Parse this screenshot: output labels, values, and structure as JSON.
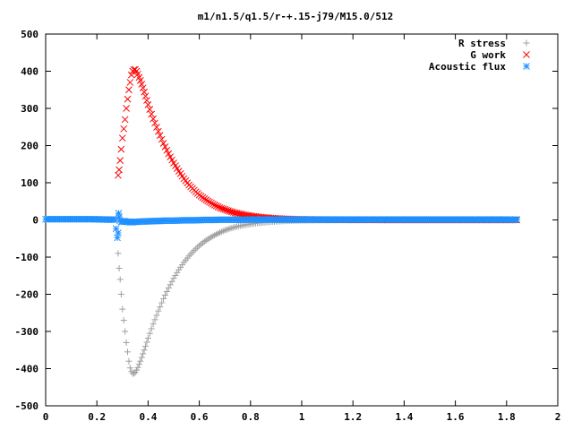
{
  "chart_data": {
    "type": "scatter",
    "title": "m1/n1.5/q1.5/r-+.15-j79/M15.0/512",
    "xlabel": "",
    "ylabel": "",
    "xlim": [
      0,
      2
    ],
    "ylim": [
      -500,
      500
    ],
    "x_ticks": [
      "0",
      "0.2",
      "0.4",
      "0.6",
      "0.8",
      "1",
      "1.2",
      "1.4",
      "1.6",
      "1.8",
      "2"
    ],
    "y_ticks": [
      "500",
      "400",
      "300",
      "200",
      "100",
      "0",
      "-100",
      "-200",
      "-300",
      "-400",
      "-500"
    ],
    "grid": false,
    "legend_position": "top-right",
    "series": [
      {
        "name": "R stress",
        "marker": "plus",
        "color": "#a0a0a0",
        "x": [
          0.283,
          0.287,
          0.291,
          0.295,
          0.3,
          0.305,
          0.31,
          0.315,
          0.32,
          0.325,
          0.33,
          0.335,
          0.34,
          0.345,
          0.35,
          0.355,
          0.36,
          0.37,
          0.38,
          0.39,
          0.4,
          0.42,
          0.44,
          0.46,
          0.48,
          0.5,
          0.52,
          0.54,
          0.56,
          0.58,
          0.6,
          0.62,
          0.64,
          0.66,
          0.68,
          0.7,
          0.72,
          0.74,
          0.76,
          0.78,
          0.8,
          0.82,
          0.84,
          0.86,
          0.88,
          0.9,
          0.92,
          0.94,
          0.96,
          0.98,
          1.0,
          1.05,
          1.1,
          1.15,
          1.2,
          1.25,
          1.3,
          1.4,
          1.5,
          1.6,
          1.7,
          1.8,
          1.84
        ],
        "y": [
          -90,
          -130,
          -160,
          -200,
          -240,
          -270,
          -300,
          -330,
          -355,
          -380,
          -398,
          -408,
          -413,
          -413,
          -410,
          -404,
          -397,
          -380,
          -360,
          -340,
          -318,
          -280,
          -245,
          -212,
          -183,
          -157,
          -134,
          -114,
          -97,
          -82,
          -69,
          -58,
          -49,
          -41,
          -34,
          -28,
          -23,
          -19,
          -16,
          -13,
          -11,
          -9,
          -7.5,
          -6,
          -5,
          -4,
          -3.3,
          -2.7,
          -2.2,
          -1.8,
          -1.5,
          -1,
          -0.7,
          -0.5,
          -0.3,
          -0.2,
          -0.1,
          0,
          0,
          0,
          0,
          0,
          0
        ]
      },
      {
        "name": "G work",
        "marker": "cross",
        "color": "#ff0000",
        "x": [
          0.283,
          0.287,
          0.291,
          0.295,
          0.3,
          0.305,
          0.31,
          0.315,
          0.32,
          0.325,
          0.33,
          0.335,
          0.34,
          0.345,
          0.35,
          0.355,
          0.36,
          0.37,
          0.38,
          0.39,
          0.4,
          0.42,
          0.44,
          0.46,
          0.48,
          0.5,
          0.52,
          0.54,
          0.56,
          0.58,
          0.6,
          0.62,
          0.64,
          0.66,
          0.68,
          0.7,
          0.72,
          0.74,
          0.76,
          0.78,
          0.8,
          0.82,
          0.84,
          0.86,
          0.88,
          0.9,
          0.92,
          0.94,
          0.96,
          0.98,
          1.0,
          1.05,
          1.1,
          1.15,
          1.2,
          1.25,
          1.3,
          1.4,
          1.5,
          1.6,
          1.7,
          1.8,
          1.84
        ],
        "y": [
          120,
          135,
          160,
          190,
          220,
          245,
          270,
          300,
          325,
          350,
          370,
          390,
          400,
          404,
          405,
          400,
          392,
          375,
          355,
          333,
          310,
          272,
          238,
          206,
          178,
          153,
          131,
          111,
          94,
          80,
          67,
          57,
          48,
          40,
          33,
          28,
          23,
          19,
          16,
          13,
          11,
          9,
          7.5,
          6,
          5,
          4,
          3.3,
          2.7,
          2.2,
          1.8,
          1.5,
          1,
          0.7,
          0.5,
          0.3,
          0.2,
          0.1,
          0,
          0,
          0,
          0,
          0,
          0
        ]
      },
      {
        "name": "Acoustic flux",
        "marker": "star",
        "color": "#1e90ff",
        "x": [
          0.0,
          0.03,
          0.06,
          0.09,
          0.12,
          0.15,
          0.18,
          0.21,
          0.24,
          0.27,
          0.28,
          0.283,
          0.285,
          0.287,
          0.29,
          0.295,
          0.3,
          0.305,
          0.31,
          0.32,
          0.33,
          0.34,
          0.35,
          0.36,
          0.38,
          0.4,
          0.42,
          0.44,
          0.46,
          0.48,
          0.5,
          0.52,
          0.54,
          0.56,
          0.58,
          0.6,
          0.62,
          0.64,
          0.66,
          0.68,
          0.7,
          0.72,
          0.74,
          0.76,
          0.78,
          0.8,
          0.82,
          0.84,
          0.86,
          0.88,
          0.9,
          0.92,
          0.94,
          0.96,
          0.98,
          1.0,
          1.05,
          1.1,
          1.15,
          1.2,
          1.25,
          1.3,
          1.35,
          1.4,
          1.45,
          1.5,
          1.55,
          1.6,
          1.65,
          1.7,
          1.75,
          1.8,
          1.84
        ],
        "y": [
          2,
          2,
          2,
          2,
          2,
          2,
          2,
          1.5,
          1,
          1,
          -48,
          -35,
          18,
          8,
          -2,
          -5,
          -5,
          -3,
          -4,
          -5,
          -6,
          -6,
          -5,
          -5,
          -4,
          -4,
          -3,
          -3,
          -2,
          -2,
          -2,
          -1.5,
          -1,
          -1,
          -1,
          -0.5,
          0,
          0,
          0,
          0.5,
          0.5,
          0.5,
          0.5,
          0.5,
          0.5,
          1,
          1,
          1,
          1,
          1,
          1,
          1,
          1,
          1,
          1,
          1,
          1,
          1,
          1,
          1,
          1,
          1,
          1,
          1,
          1,
          1,
          1,
          1,
          1,
          1,
          1,
          1,
          1
        ]
      }
    ]
  }
}
